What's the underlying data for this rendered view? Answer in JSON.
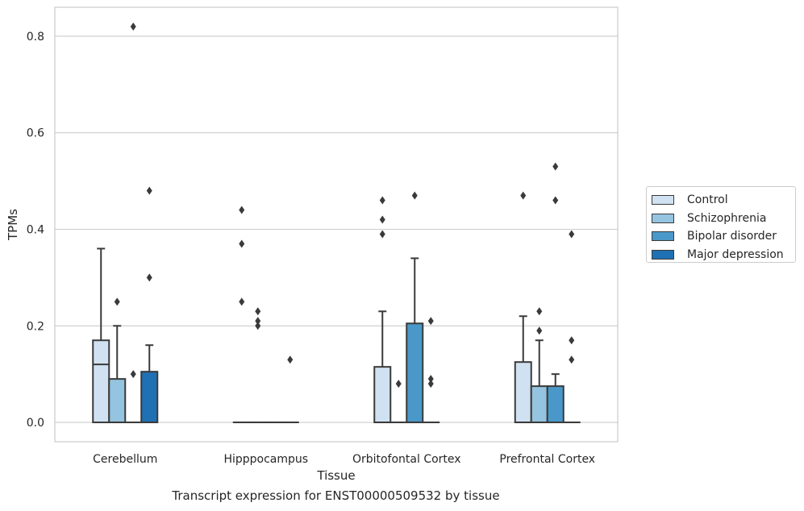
{
  "caption": "Transcript expression for ENST00000509532 by tissue",
  "chart_data": {
    "type": "box",
    "title": "",
    "xlabel": "Tissue",
    "ylabel": "TPMs",
    "ylim": [
      -0.04,
      0.86
    ],
    "yticks": [
      0.0,
      0.2,
      0.4,
      0.6,
      0.8
    ],
    "ytick_labels": [
      "0.0",
      "0.2",
      "0.4",
      "0.6",
      "0.8"
    ],
    "grid": "horizontal",
    "legend_position": "outside-right",
    "categories": [
      "Cerebellum",
      "Hipppocampus",
      "Orbitofontal Cortex",
      "Prefrontal Cortex"
    ],
    "series": [
      {
        "name": "Control",
        "color": "#d0e1f1",
        "boxes": [
          {
            "q1": 0.0,
            "median": 0.12,
            "q3": 0.17,
            "whisker_low": 0.0,
            "whisker_high": 0.36,
            "outliers": []
          },
          {
            "q1": 0.0,
            "median": 0.0,
            "q3": 0.0,
            "whisker_low": 0.0,
            "whisker_high": 0.0,
            "outliers": [
              0.44,
              0.37,
              0.25
            ]
          },
          {
            "q1": 0.0,
            "median": 0.0,
            "q3": 0.115,
            "whisker_low": 0.0,
            "whisker_high": 0.23,
            "outliers": [
              0.46,
              0.42,
              0.39
            ]
          },
          {
            "q1": 0.0,
            "median": 0.0,
            "q3": 0.125,
            "whisker_low": 0.0,
            "whisker_high": 0.22,
            "outliers": [
              0.47
            ]
          }
        ]
      },
      {
        "name": "Schizophrenia",
        "color": "#94c4df",
        "boxes": [
          {
            "q1": 0.0,
            "median": 0.0,
            "q3": 0.09,
            "whisker_low": 0.0,
            "whisker_high": 0.2,
            "outliers": [
              0.25
            ]
          },
          {
            "q1": 0.0,
            "median": 0.0,
            "q3": 0.0,
            "whisker_low": 0.0,
            "whisker_high": 0.0,
            "outliers": [
              0.23,
              0.21,
              0.2
            ]
          },
          {
            "q1": 0.0,
            "median": 0.0,
            "q3": 0.0,
            "whisker_low": 0.0,
            "whisker_high": 0.0,
            "outliers": [
              0.08
            ]
          },
          {
            "q1": 0.0,
            "median": 0.0,
            "q3": 0.075,
            "whisker_low": 0.0,
            "whisker_high": 0.17,
            "outliers": [
              0.23,
              0.19
            ]
          }
        ]
      },
      {
        "name": "Bipolar disorder",
        "color": "#4a98c9",
        "boxes": [
          {
            "q1": 0.0,
            "median": 0.0,
            "q3": 0.0,
            "whisker_low": 0.0,
            "whisker_high": 0.0,
            "outliers": [
              0.82,
              0.1
            ]
          },
          {
            "q1": 0.0,
            "median": 0.0,
            "q3": 0.0,
            "whisker_low": 0.0,
            "whisker_high": 0.0,
            "outliers": []
          },
          {
            "q1": 0.0,
            "median": 0.0,
            "q3": 0.205,
            "whisker_low": 0.0,
            "whisker_high": 0.34,
            "outliers": [
              0.47
            ]
          },
          {
            "q1": 0.0,
            "median": 0.0,
            "q3": 0.075,
            "whisker_low": 0.0,
            "whisker_high": 0.1,
            "outliers": [
              0.53,
              0.46
            ]
          }
        ]
      },
      {
        "name": "Major depression",
        "color": "#2070b4",
        "boxes": [
          {
            "q1": 0.0,
            "median": 0.0,
            "q3": 0.105,
            "whisker_low": 0.0,
            "whisker_high": 0.16,
            "outliers": [
              0.48,
              0.3
            ]
          },
          {
            "q1": 0.0,
            "median": 0.0,
            "q3": 0.0,
            "whisker_low": 0.0,
            "whisker_high": 0.0,
            "outliers": [
              0.13
            ]
          },
          {
            "q1": 0.0,
            "median": 0.0,
            "q3": 0.0,
            "whisker_low": 0.0,
            "whisker_high": 0.0,
            "outliers": [
              0.21,
              0.09,
              0.08
            ]
          },
          {
            "q1": 0.0,
            "median": 0.0,
            "q3": 0.0,
            "whisker_low": 0.0,
            "whisker_high": 0.0,
            "outliers": [
              0.39,
              0.17,
              0.13
            ]
          }
        ]
      }
    ]
  }
}
